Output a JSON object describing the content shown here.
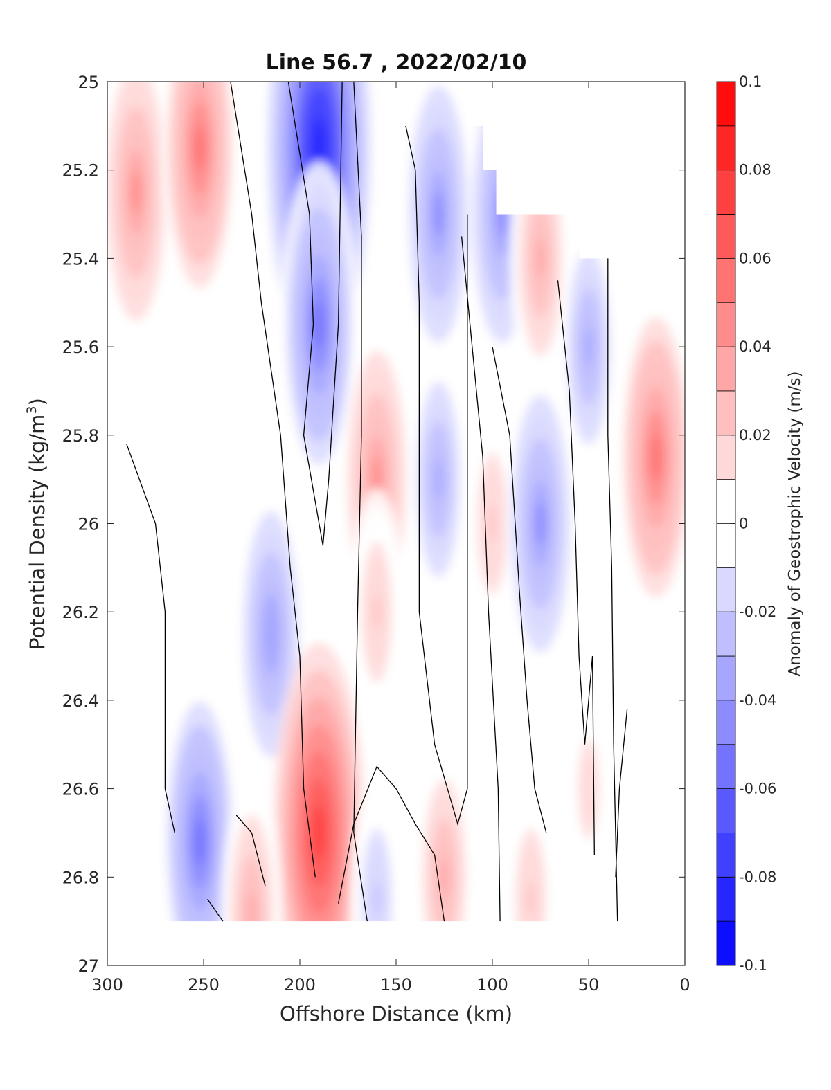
{
  "chart_data": {
    "type": "heatmap",
    "title": "Line 56.7 , 2022/02/10",
    "xlabel": "Offshore Distance (km)",
    "ylabel": "Potential Density (kg/m",
    "ylabel_sup": "3",
    "ylabel_tail": ")",
    "colorbar_label": "Anomaly of Geostrophic Velocity (m/s)",
    "xlim": [
      300,
      0
    ],
    "ylim": [
      25,
      27
    ],
    "x_reversed": true,
    "y_reversed": true,
    "x_ticks": [
      "300",
      "250",
      "200",
      "150",
      "100",
      "50",
      "0"
    ],
    "y_ticks": [
      "25",
      "25.2",
      "25.4",
      "25.6",
      "25.8",
      "26",
      "26.2",
      "26.4",
      "26.6",
      "26.8",
      "27"
    ],
    "colorbar_ticks": [
      "0.1",
      "0.08",
      "0.06",
      "0.04",
      "0.02",
      "0",
      "-0.02",
      "-0.04",
      "-0.06",
      "-0.08",
      "-0.1"
    ],
    "clim": [
      -0.1,
      0.1
    ],
    "contour_levels": [
      -0.1,
      -0.09,
      -0.08,
      -0.07,
      -0.06,
      -0.05,
      -0.04,
      -0.03,
      -0.02,
      -0.01,
      0.01,
      0.02,
      0.03,
      0.04,
      0.05,
      0.06,
      0.07,
      0.08,
      0.09,
      0.1
    ],
    "colormap": {
      "negative_end": "#0000ff",
      "zero": "#ffffff",
      "positive_end": "#ff0000"
    },
    "zero_contour_color": "#000000",
    "grid": false,
    "features": [
      {
        "kind": "max",
        "x": 285,
        "y": 25.25,
        "value": 0.04
      },
      {
        "kind": "max",
        "x": 252,
        "y": 25.15,
        "value": 0.05
      },
      {
        "kind": "min",
        "x": 190,
        "y": 25.15,
        "value": -0.085
      },
      {
        "kind": "min",
        "x": 190,
        "y": 25.55,
        "value": -0.05
      },
      {
        "kind": "max",
        "x": 160,
        "y": 25.9,
        "value": 0.04
      },
      {
        "kind": "min",
        "x": 128,
        "y": 25.3,
        "value": -0.04
      },
      {
        "kind": "min",
        "x": 128,
        "y": 25.9,
        "value": -0.03
      },
      {
        "kind": "max",
        "x": 100,
        "y": 26.0,
        "value": 0.02
      },
      {
        "kind": "min",
        "x": 95,
        "y": 25.3,
        "value": -0.04
      },
      {
        "kind": "min",
        "x": 75,
        "y": 26.0,
        "value": -0.04
      },
      {
        "kind": "min",
        "x": 50,
        "y": 25.6,
        "value": -0.03
      },
      {
        "kind": "max",
        "x": 15,
        "y": 25.85,
        "value": 0.05
      },
      {
        "kind": "min",
        "x": 215,
        "y": 26.25,
        "value": -0.035
      },
      {
        "kind": "min",
        "x": 252,
        "y": 26.72,
        "value": -0.05
      },
      {
        "kind": "max",
        "x": 190,
        "y": 26.7,
        "value": 0.07
      },
      {
        "kind": "max",
        "x": 160,
        "y": 26.2,
        "value": 0.02
      },
      {
        "kind": "max",
        "x": 125,
        "y": 26.8,
        "value": 0.03
      },
      {
        "kind": "max",
        "x": 75,
        "y": 25.4,
        "value": 0.03
      },
      {
        "kind": "max",
        "x": 225,
        "y": 26.88,
        "value": 0.03
      },
      {
        "kind": "min",
        "x": 160,
        "y": 26.85,
        "value": -0.02
      },
      {
        "kind": "max",
        "x": 80,
        "y": 26.85,
        "value": 0.02
      },
      {
        "kind": "max",
        "x": 50,
        "y": 26.6,
        "value": 0.015
      }
    ]
  }
}
